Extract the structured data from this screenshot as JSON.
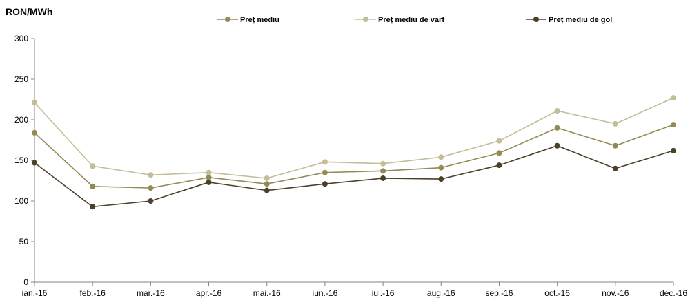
{
  "chart_data": {
    "type": "line",
    "ylabel": "RON/MWh",
    "ylim": [
      0,
      300
    ],
    "yticks": [
      0,
      50,
      100,
      150,
      200,
      250,
      300
    ],
    "grid": false,
    "legend_position": "top",
    "categories": [
      "ian.-16",
      "feb.-16",
      "mar.-16",
      "apr.-16",
      "mai.-16",
      "iun.-16",
      "iul.-16",
      "aug.-16",
      "sep.-16",
      "oct.-16",
      "nov.-16",
      "dec.-16"
    ],
    "series": [
      {
        "name": "Preț mediu",
        "color": "#948a54",
        "values": [
          184,
          118,
          116,
          129,
          121,
          135,
          137,
          141,
          159,
          190,
          168,
          194
        ]
      },
      {
        "name": "Preț mediu de varf",
        "color": "#c4bd97",
        "values": [
          221,
          143,
          132,
          135,
          128,
          148,
          146,
          154,
          174,
          211,
          195,
          227
        ]
      },
      {
        "name": "Preț mediu de gol",
        "color": "#4a4128",
        "values": [
          147,
          93,
          100,
          123,
          113,
          121,
          128,
          127,
          144,
          168,
          140,
          162
        ]
      }
    ]
  }
}
